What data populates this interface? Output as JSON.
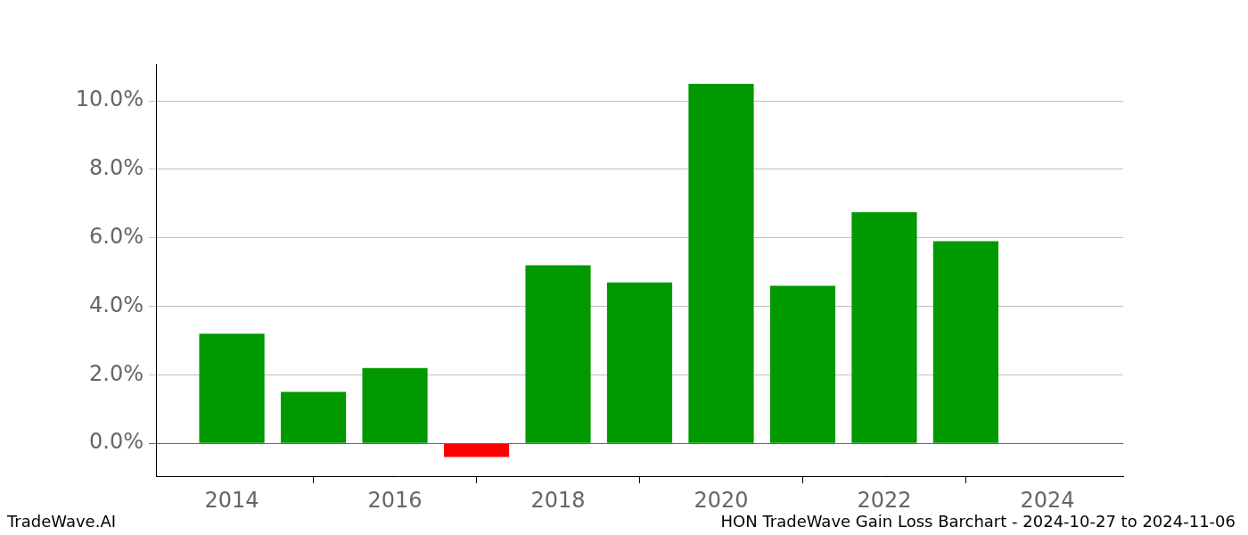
{
  "chart_data": {
    "type": "bar",
    "x": [
      2014,
      2015,
      2016,
      2017,
      2018,
      2019,
      2020,
      2021,
      2022,
      2023
    ],
    "values": [
      3.2,
      1.5,
      2.2,
      -0.4,
      5.2,
      4.7,
      10.5,
      4.6,
      6.75,
      5.9
    ],
    "colors": [
      "#009900",
      "#009900",
      "#009900",
      "#ff0000",
      "#009900",
      "#009900",
      "#009900",
      "#009900",
      "#009900",
      "#009900"
    ],
    "xlim": [
      2013.07,
      2024.93
    ],
    "xticks": [
      2014,
      2016,
      2018,
      2020,
      2022,
      2024
    ],
    "ylim": [
      -0.96,
      11.07
    ],
    "yticks": [
      {
        "value": 0,
        "label": "0.0%"
      },
      {
        "value": 2,
        "label": "2.0%"
      },
      {
        "value": 4,
        "label": "4.0%"
      },
      {
        "value": 6,
        "label": "6.0%"
      },
      {
        "value": 8,
        "label": "8.0%"
      },
      {
        "value": 10,
        "label": "10.0%"
      }
    ],
    "grid": true,
    "annotations": [
      "TradeWave.AI",
      "HON TradeWave Gain Loss Barchart - 2024-10-27 to 2024-11-06"
    ]
  }
}
